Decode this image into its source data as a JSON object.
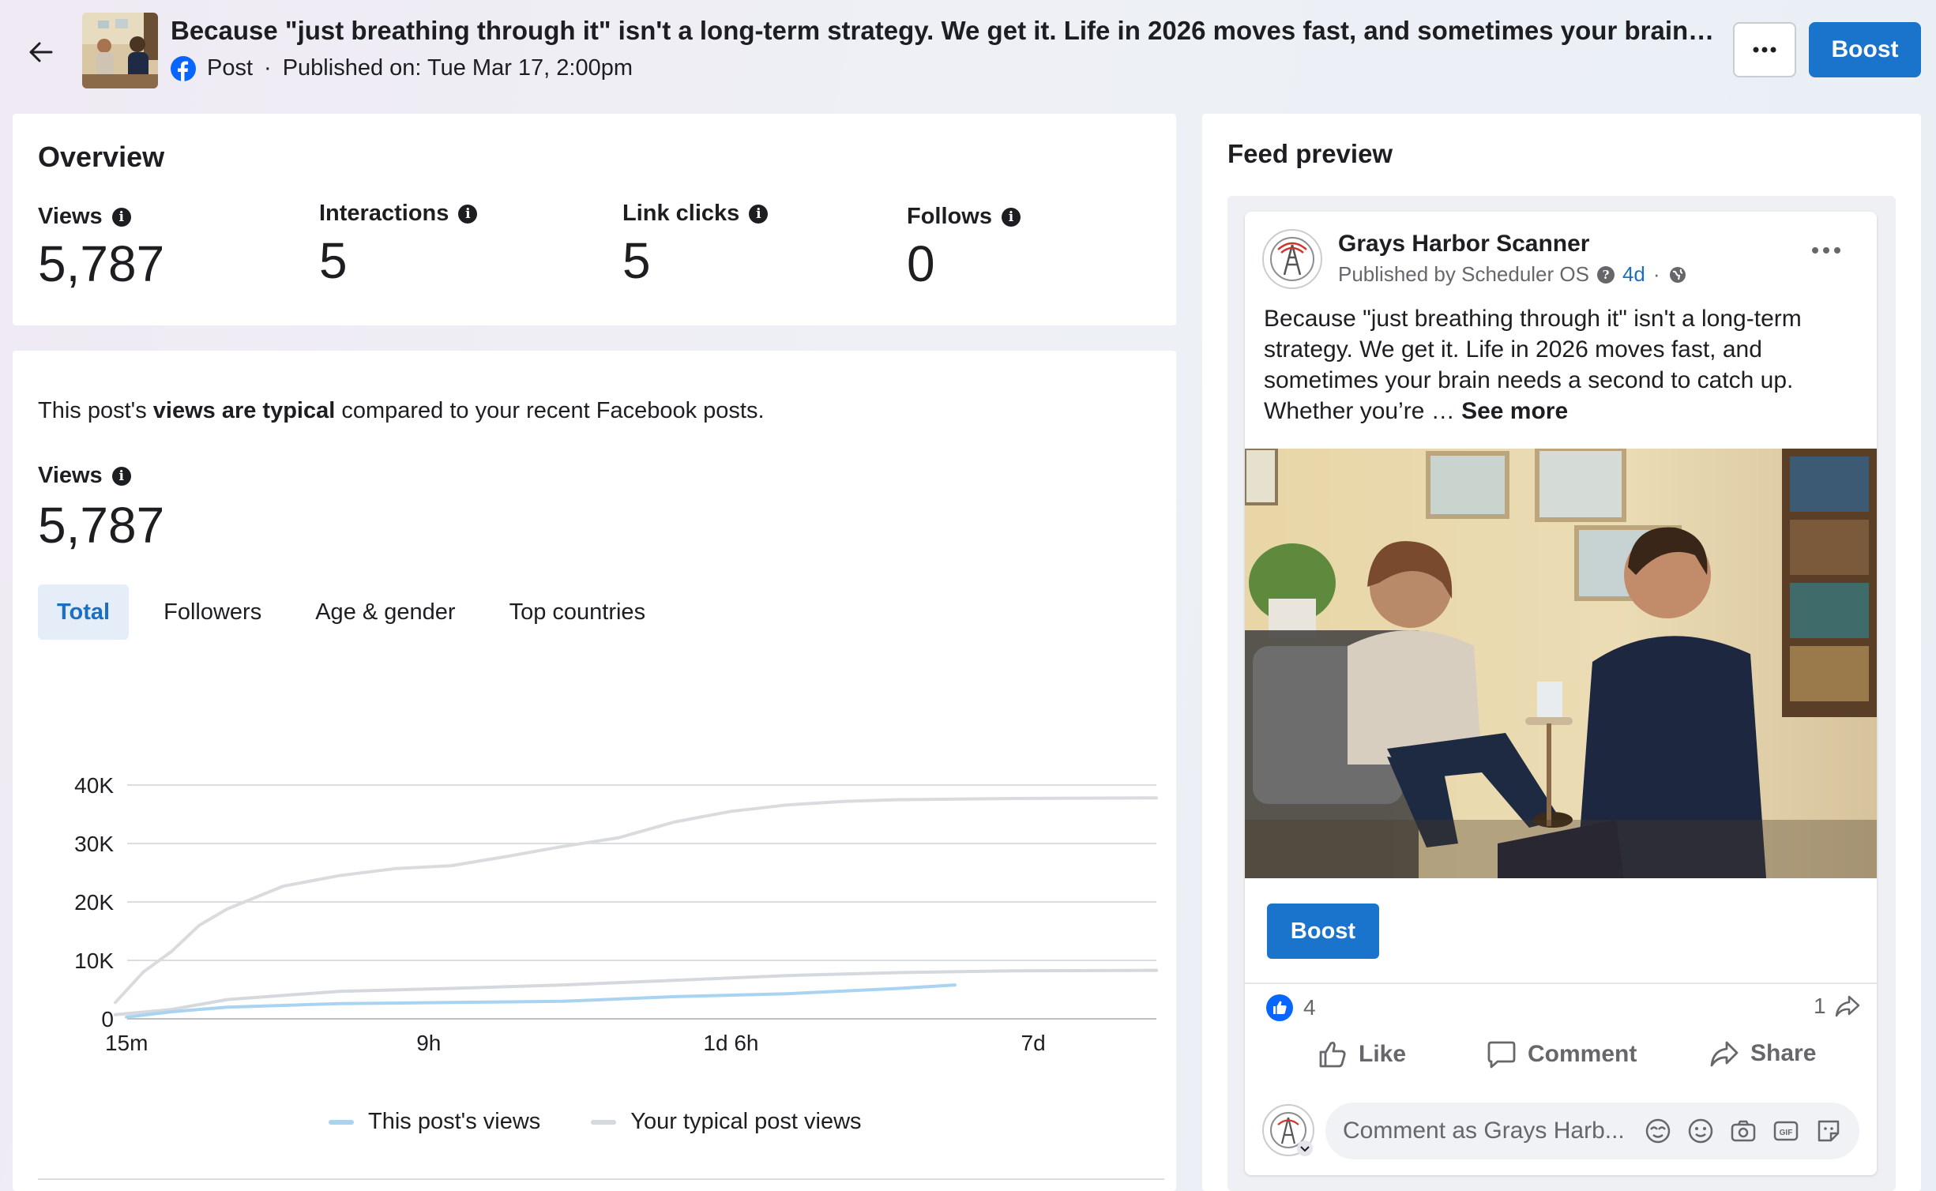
{
  "header": {
    "title": "Because \"just breathing through it\" isn't a long-term strategy. We get it. Life in 2026 moves fast, and sometimes your brain needs a second to catch up.",
    "type": "Post",
    "published": "Published on: Tue Mar 17, 2:00pm",
    "boost_label": "Boost",
    "more_label": "···"
  },
  "overview": {
    "title": "Overview",
    "metrics": [
      {
        "label": "Views",
        "value": "5,787"
      },
      {
        "label": "Interactions",
        "value": "5"
      },
      {
        "label": "Link clicks",
        "value": "5"
      },
      {
        "label": "Follows",
        "value": "0"
      }
    ]
  },
  "analytics": {
    "summary_prefix": "This post's ",
    "summary_bold": "views are typical",
    "summary_suffix": " compared to your recent Facebook posts.",
    "views_label": "Views",
    "views_value": "5,787",
    "tabs": [
      "Total",
      "Followers",
      "Age & gender",
      "Top countries"
    ],
    "active_tab": "Total"
  },
  "chart_data": {
    "type": "line",
    "title": "",
    "xlabel": "",
    "ylabel": "",
    "ylim": [
      0,
      40000
    ],
    "yticks": [
      "0",
      "10K",
      "20K",
      "30K",
      "40K"
    ],
    "xticks": [
      "15m",
      "9h",
      "1d 6h",
      "7d"
    ],
    "grid": true,
    "legend_position": "bottom",
    "series": [
      {
        "name": "This post's views",
        "color": "#a8d4f2",
        "x": [
          0.1,
          0.5,
          1,
          2,
          3,
          4,
          5,
          6,
          7,
          7.5
        ],
        "values": [
          300,
          1200,
          2000,
          2600,
          2800,
          3000,
          3800,
          4300,
          5200,
          5800
        ]
      },
      {
        "name": "Your typical post views",
        "color": "#d5d8dc",
        "x": [
          0,
          0.5,
          1,
          2,
          3,
          4,
          5,
          6,
          7,
          8,
          9.3
        ],
        "values": [
          700,
          1600,
          3300,
          4700,
          5200,
          5800,
          6600,
          7400,
          7900,
          8200,
          8300
        ]
      },
      {
        "name": "",
        "color": "#d9dbde",
        "x": [
          0,
          0.25,
          0.5,
          0.75,
          1,
          1.5,
          2,
          2.5,
          3,
          3.5,
          4,
          4.5,
          5,
          5.5,
          6,
          6.5,
          7,
          8,
          9.3
        ],
        "values": [
          2800,
          8000,
          11500,
          16000,
          18800,
          22700,
          24500,
          25700,
          26200,
          27800,
          29500,
          31000,
          33700,
          35500,
          36600,
          37200,
          37500,
          37700,
          37800
        ]
      }
    ]
  },
  "preview": {
    "title": "Feed preview",
    "page_name": "Grays Harbor Scanner",
    "published_by": "Published by Scheduler OS",
    "time": "4d",
    "text": "Because \"just breathing through it\" isn't a long-term strategy. We get it. Life in 2026 moves fast, and sometimes your brain needs a second to catch up. Whether you’re … ",
    "see_more": "See more",
    "boost_label": "Boost",
    "reactions_count": "4",
    "shares_count": "1",
    "actions": {
      "like": "Like",
      "comment": "Comment",
      "share": "Share"
    },
    "comment_placeholder": "Comment as Grays Harb..."
  },
  "colors": {
    "accent": "#1b74cc",
    "facebook": "#0866ff",
    "post_line": "#a8d4f2",
    "typical_line": "#d5d8dc"
  },
  "icons": [
    "back-arrow-icon",
    "facebook-icon",
    "more-icon",
    "info-icon",
    "globe-icon",
    "like-icon",
    "comment-icon",
    "share-icon",
    "avatar-icon",
    "sticker-icon",
    "emoji-icon",
    "camera-icon",
    "gif-icon",
    "avatar-sticker-icon"
  ]
}
